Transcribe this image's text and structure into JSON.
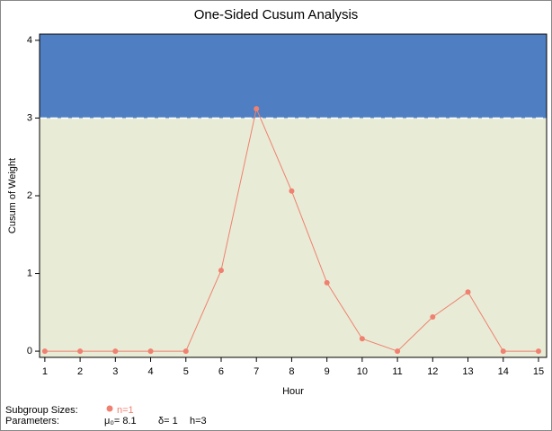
{
  "chart_data": {
    "type": "line",
    "title": "One-Sided Cusum Analysis",
    "x_label": "Hour",
    "y_label": "Cusum of Weight",
    "x": [
      1,
      2,
      3,
      4,
      5,
      6,
      7,
      8,
      9,
      10,
      11,
      12,
      13,
      14,
      15
    ],
    "series": [
      {
        "name": "n=1",
        "color": "#f08070",
        "values": [
          0,
          0,
          0,
          0,
          0,
          1.04,
          3.12,
          2.06,
          0.88,
          0.16,
          0,
          0.44,
          0.76,
          0,
          0
        ]
      }
    ],
    "xlim": [
      0.85,
      15.23
    ],
    "xticks": [
      1,
      2,
      3,
      4,
      5,
      6,
      7,
      8,
      9,
      10,
      11,
      12,
      13,
      14,
      15
    ],
    "ylim": [
      -0.08,
      4.08
    ],
    "yticks": [
      0,
      1,
      2,
      3,
      4
    ],
    "h": {
      "value": 3,
      "label": "h=3"
    },
    "upper_color": "#4f7fc2",
    "lower_color": "#e8ecd6",
    "subgroup_label": "Subgroup Sizes:",
    "parameters_label": "Parameters:",
    "mu": "μ₀= 8.1",
    "delta": "δ= 1"
  }
}
